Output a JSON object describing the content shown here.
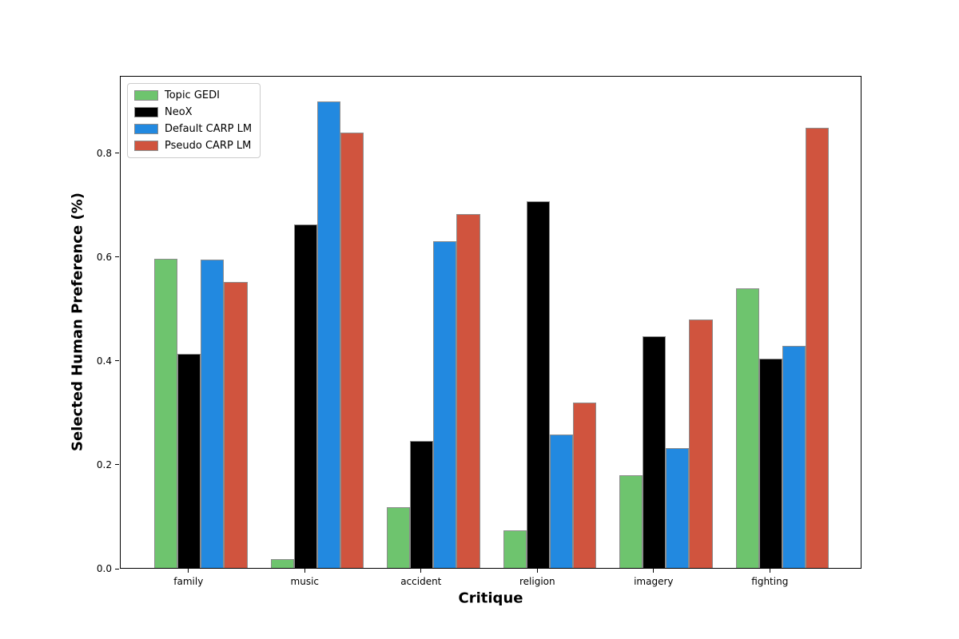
{
  "chart_data": {
    "type": "bar",
    "title": "",
    "xlabel": "Critique",
    "ylabel": "Selected Human Preference (%)",
    "categories": [
      "family",
      "music",
      "accident",
      "religion",
      "imagery",
      "fighting"
    ],
    "series": [
      {
        "name": "Topic GEDI",
        "color": "#6ec46e",
        "values": [
          0.595,
          0.017,
          0.117,
          0.072,
          0.178,
          0.538
        ]
      },
      {
        "name": "NeoX",
        "color": "#000000",
        "values": [
          0.412,
          0.662,
          0.245,
          0.706,
          0.446,
          0.403
        ]
      },
      {
        "name": "Default CARP LM",
        "color": "#2289e0",
        "values": [
          0.593,
          0.898,
          0.629,
          0.257,
          0.231,
          0.427
        ]
      },
      {
        "name": "Pseudo CARP LM",
        "color": "#d0543e",
        "values": [
          0.55,
          0.839,
          0.681,
          0.318,
          0.479,
          0.848
        ]
      }
    ],
    "yticks": [
      0.0,
      0.2,
      0.4,
      0.6,
      0.8
    ],
    "ytick_labels": [
      "0.0",
      "0.2",
      "0.4",
      "0.6",
      "0.8"
    ],
    "ylim": [
      0,
      0.949
    ],
    "grid": false,
    "legend_position": "upper left",
    "bar_edge_color": "#8c8c8c",
    "background_color": "#ffffff"
  }
}
